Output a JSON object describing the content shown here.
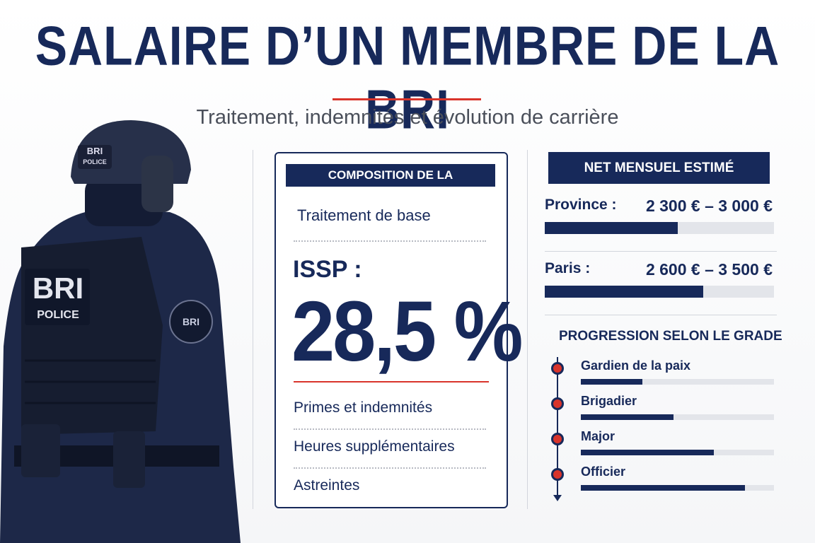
{
  "header": {
    "title": "SALAIRE D’UN MEMBRE DE LA BRI",
    "subtitle": "Traitement, indemnités et évolution de carrière"
  },
  "figure": {
    "helmet_badge": [
      "BRI",
      "POLICE"
    ],
    "vest_badge": [
      "BRI",
      "POLICE"
    ],
    "patch": "BRI"
  },
  "composition": {
    "heading": "COMPOSITION DE LA RÉMUNÉRATION",
    "base": "Traitement de base",
    "issp_label": "ISSP :",
    "issp_value": "28,5 %",
    "items": [
      "Primes et indemnités",
      "Heures supplémentaires",
      "Astreintes"
    ]
  },
  "net": {
    "heading": "NET MENSUEL ESTIMÉ",
    "regions": [
      {
        "label": "Province :",
        "range": "2 300 € – 3 000 €",
        "bar": 58
      },
      {
        "label": "Paris :",
        "range": "2 600 € – 3 500 €",
        "bar": 69
      }
    ]
  },
  "grades": {
    "heading": "PROGRESSION SELON LE GRADE",
    "levels": [
      {
        "label": "Gardien de la paix",
        "bar": 32
      },
      {
        "label": "Brigadier",
        "bar": 48
      },
      {
        "label": "Major",
        "bar": 69
      },
      {
        "label": "Officier",
        "bar": 85
      }
    ]
  }
}
